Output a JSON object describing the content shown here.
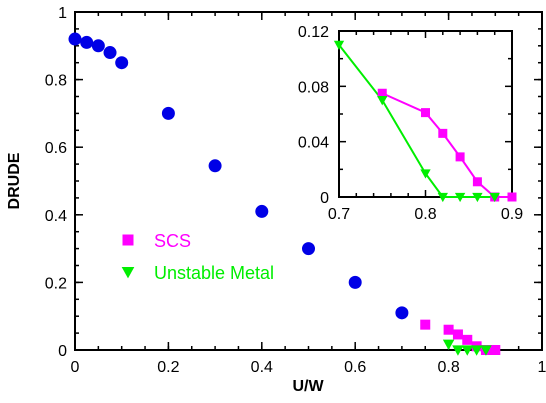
{
  "chart_data": [
    {
      "type": "scatter",
      "title": "",
      "xlabel": "U/W",
      "ylabel": "DRUDE",
      "xlim": [
        0,
        1
      ],
      "ylim": [
        0,
        1
      ],
      "xticks": [
        "0",
        "0.2",
        "0.4",
        "0.6",
        "0.8",
        "1"
      ],
      "yticks": [
        "0",
        "0.2",
        "0.4",
        "0.6",
        "0.8",
        "1"
      ],
      "legend_position": "lower-left",
      "series": [
        {
          "marker": "circle",
          "color": "#0000e6",
          "x": [
            0.0,
            0.025,
            0.05,
            0.075,
            0.1,
            0.2,
            0.3,
            0.4,
            0.5,
            0.6,
            0.7
          ],
          "y": [
            0.92,
            0.91,
            0.9,
            0.88,
            0.85,
            0.7,
            0.545,
            0.41,
            0.3,
            0.2,
            0.11
          ]
        },
        {
          "name": "SCS",
          "marker": "square",
          "color": "#ff00ff",
          "x": [
            0.75,
            0.8,
            0.82,
            0.84,
            0.86,
            0.88,
            0.9
          ],
          "y": [
            0.075,
            0.06,
            0.046,
            0.03,
            0.011,
            0.0,
            0.0
          ]
        },
        {
          "name": "Unstable Metal",
          "marker": "triangle-down",
          "color": "#00ee00",
          "x": [
            0.8,
            0.82,
            0.84,
            0.86,
            0.88
          ],
          "y": [
            0.017,
            0.0,
            0.0,
            0.0,
            0.0
          ]
        }
      ]
    },
    {
      "type": "line",
      "title": "",
      "xlabel": "",
      "ylabel": "",
      "xlim": [
        0.7,
        0.9
      ],
      "ylim": [
        0,
        0.12
      ],
      "xticks": [
        "0.7",
        "0.8",
        "0.9"
      ],
      "yticks": [
        "0",
        "0.04",
        "0.08",
        "0.12"
      ],
      "series": [
        {
          "name": "SCS",
          "marker": "square",
          "color": "#ff00ff",
          "x": [
            0.75,
            0.8,
            0.82,
            0.84,
            0.86,
            0.88,
            0.9
          ],
          "y": [
            0.075,
            0.061,
            0.046,
            0.029,
            0.011,
            0.0,
            0.0
          ]
        },
        {
          "name": "Unstable Metal",
          "marker": "triangle-down",
          "color": "#00ee00",
          "x": [
            0.7,
            0.75,
            0.8,
            0.82,
            0.84,
            0.86,
            0.88
          ],
          "y": [
            0.11,
            0.07,
            0.017,
            0.0,
            0.0,
            0.0,
            0.0
          ]
        }
      ]
    }
  ]
}
